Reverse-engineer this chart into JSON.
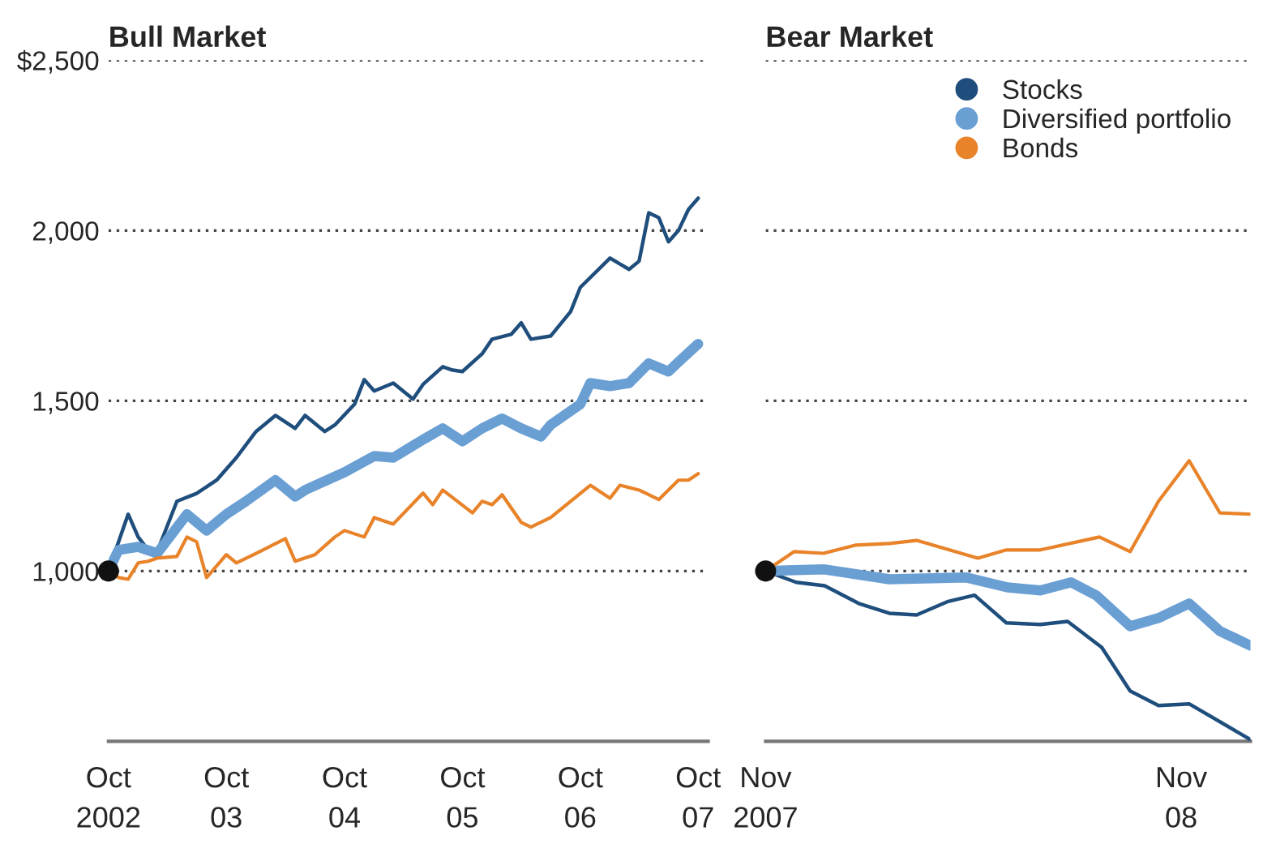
{
  "chart_data": [
    {
      "type": "line",
      "title": "Bull Market",
      "xlim": [
        "2002-10",
        "2007-11"
      ],
      "ylim": [
        500,
        2500
      ],
      "yticks": [
        {
          "value": 2500,
          "label": "$2,500"
        },
        {
          "value": 2000,
          "label": "2,000"
        },
        {
          "value": 1500,
          "label": "1,500"
        },
        {
          "value": 1000,
          "label": "1,000"
        }
      ],
      "xticks": [
        {
          "value": "2002-10",
          "label": "Oct\n2002"
        },
        {
          "value": "2003-10",
          "label": "Oct\n03"
        },
        {
          "value": "2004-10",
          "label": "Oct\n04"
        },
        {
          "value": "2005-10",
          "label": "Oct\n05"
        },
        {
          "value": "2006-10",
          "label": "Oct\n06"
        },
        {
          "value": "2007-10",
          "label": "Oct\n07"
        }
      ],
      "grid": "y",
      "legend": false,
      "series": [
        {
          "color": "#1f4e7d",
          "x": [
            "2002-10",
            "2002-12",
            "2003-01",
            "2003-02",
            "2003-03",
            "2003-05",
            "2003-07",
            "2003-09",
            "2003-11",
            "2004-01",
            "2004-03",
            "2004-05",
            "2004-06",
            "2004-08",
            "2004-09",
            "2004-11",
            "2004-12",
            "2005-01",
            "2005-03",
            "2005-05",
            "2005-06",
            "2005-08",
            "2005-09",
            "2005-10",
            "2005-12",
            "2006-01",
            "2006-03",
            "2006-04",
            "2006-05",
            "2006-07",
            "2006-09",
            "2006-10",
            "2007-01",
            "2007-03",
            "2007-04",
            "2007-05",
            "2007-06",
            "2007-07",
            "2007-08",
            "2007-09",
            "2007-10"
          ],
          "values": [
            1000,
            1167,
            1100,
            1062,
            1057,
            1205,
            1228,
            1267,
            1333,
            1410,
            1457,
            1419,
            1457,
            1410,
            1429,
            1490,
            1562,
            1529,
            1552,
            1505,
            1548,
            1600,
            1590,
            1586,
            1638,
            1681,
            1695,
            1729,
            1681,
            1690,
            1762,
            1833,
            1919,
            1886,
            1910,
            2052,
            2038,
            1967,
            2000,
            2062,
            2095
          ]
        },
        {
          "color": "#6a9fd4",
          "x": [
            "2002-10",
            "2002-11",
            "2003-01",
            "2003-03",
            "2003-06",
            "2003-08",
            "2003-10",
            "2003-12",
            "2004-03",
            "2004-05",
            "2004-06",
            "2004-10",
            "2005-01",
            "2005-03",
            "2005-06",
            "2005-08",
            "2005-10",
            "2005-12",
            "2006-02",
            "2006-04",
            "2006-06",
            "2006-07",
            "2006-10",
            "2006-11",
            "2007-01",
            "2007-03",
            "2007-05",
            "2007-07",
            "2007-08",
            "2007-10"
          ],
          "values": [
            1000,
            1062,
            1071,
            1052,
            1167,
            1119,
            1167,
            1205,
            1267,
            1219,
            1238,
            1290,
            1338,
            1333,
            1386,
            1419,
            1381,
            1419,
            1448,
            1419,
            1395,
            1429,
            1490,
            1552,
            1543,
            1552,
            1610,
            1586,
            1614,
            1667
          ]
        },
        {
          "color": "#e8832a",
          "x": [
            "2002-10",
            "2002-11",
            "2002-12",
            "2003-01",
            "2003-02",
            "2003-03",
            "2003-05",
            "2003-06",
            "2003-07",
            "2003-08",
            "2003-10",
            "2003-11",
            "2004-01",
            "2004-04",
            "2004-05",
            "2004-07",
            "2004-09",
            "2004-10",
            "2004-12",
            "2005-01",
            "2005-03",
            "2005-06",
            "2005-07",
            "2005-08",
            "2005-11",
            "2005-12",
            "2006-01",
            "2006-02",
            "2006-04",
            "2006-05",
            "2006-07",
            "2006-09",
            "2006-11",
            "2007-01",
            "2007-02",
            "2007-04",
            "2007-06",
            "2007-08",
            "2007-09",
            "2007-10"
          ],
          "values": [
            1000,
            981,
            976,
            1024,
            1029,
            1038,
            1043,
            1100,
            1086,
            981,
            1048,
            1024,
            1052,
            1095,
            1029,
            1048,
            1100,
            1119,
            1100,
            1157,
            1138,
            1229,
            1195,
            1238,
            1171,
            1205,
            1195,
            1224,
            1143,
            1129,
            1157,
            1205,
            1252,
            1214,
            1252,
            1238,
            1210,
            1267,
            1267,
            1286
          ]
        },
        {
          "type": "scatter",
          "color": "#111111",
          "x": [
            "2002-10"
          ],
          "values": [
            1000
          ]
        }
      ]
    },
    {
      "type": "line",
      "title": "Bear Market",
      "xlim": [
        "2007-11-01",
        "2009-01-01"
      ],
      "ylim": [
        500,
        2500
      ],
      "yticks": [
        {
          "value": 2500,
          "label": null
        },
        {
          "value": 2000,
          "label": null
        },
        {
          "value": 1500,
          "label": null
        },
        {
          "value": 1000,
          "label": null
        }
      ],
      "xticks": [
        {
          "value": "2007-11-01",
          "label": "Nov\n2007"
        },
        {
          "value": "2008-11-01",
          "label": "Nov\n08"
        }
      ],
      "tick_labels": "x",
      "grid": "y",
      "legend": "top right",
      "series": [
        {
          "name": "Stocks",
          "color": "#1f4e7d",
          "x": [
            "2007-11-01",
            "2007-11-28",
            "2007-12-23",
            "2008-01-22",
            "2008-02-18",
            "2008-03-13",
            "2008-04-09",
            "2008-05-03",
            "2008-05-31",
            "2008-06-30",
            "2008-07-24",
            "2008-08-23",
            "2008-09-17",
            "2008-10-12",
            "2008-11-08",
            "2009-01-01"
          ],
          "values": [
            1000,
            967,
            957,
            905,
            876,
            871,
            910,
            929,
            848,
            843,
            852,
            776,
            648,
            605,
            610,
            505
          ]
        },
        {
          "name": "Diversified portfolio",
          "color": "#6a9fd4",
          "x": [
            "2007-11-01",
            "2007-12-22",
            "2008-02-18",
            "2008-04-26",
            "2008-06-01",
            "2008-06-30",
            "2008-07-27",
            "2008-08-18",
            "2008-09-17",
            "2008-10-12",
            "2008-11-08",
            "2008-12-05",
            "2009-01-01"
          ],
          "values": [
            1000,
            1005,
            976,
            981,
            952,
            943,
            967,
            929,
            838,
            862,
            905,
            824,
            781
          ]
        },
        {
          "name": "Bonds",
          "color": "#e8832a",
          "x": [
            "2007-11-01",
            "2007-11-26",
            "2007-12-22",
            "2008-01-19",
            "2008-02-18",
            "2008-03-13",
            "2008-05-06",
            "2008-05-31",
            "2008-06-30",
            "2008-08-21",
            "2008-09-17",
            "2008-10-12",
            "2008-11-08",
            "2008-12-05",
            "2009-01-01"
          ],
          "values": [
            1000,
            1057,
            1052,
            1076,
            1081,
            1090,
            1038,
            1062,
            1062,
            1100,
            1057,
            1205,
            1324,
            1171,
            1167
          ]
        },
        {
          "type": "scatter",
          "color": "#111111",
          "x": [
            "2007-11-01"
          ],
          "values": [
            1000
          ]
        }
      ]
    }
  ]
}
